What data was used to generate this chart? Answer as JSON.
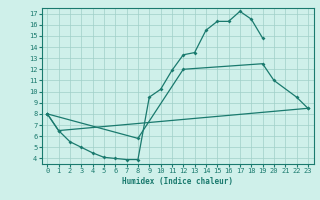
{
  "xlabel": "Humidex (Indice chaleur)",
  "background_color": "#cff0ea",
  "grid_color": "#a0cfc8",
  "line_color": "#1a7a6e",
  "xlim": [
    -0.5,
    23.5
  ],
  "ylim": [
    3.5,
    17.5
  ],
  "xticks": [
    0,
    1,
    2,
    3,
    4,
    5,
    6,
    7,
    8,
    9,
    10,
    11,
    12,
    13,
    14,
    15,
    16,
    17,
    18,
    19,
    20,
    21,
    22,
    23
  ],
  "yticks": [
    4,
    5,
    6,
    7,
    8,
    9,
    10,
    11,
    12,
    13,
    14,
    15,
    16,
    17
  ],
  "line1_x": [
    0,
    1,
    2,
    3,
    4,
    5,
    6,
    7,
    8,
    9,
    10,
    11,
    12,
    13,
    14,
    15,
    16,
    17,
    18,
    19
  ],
  "line1_y": [
    8.0,
    6.5,
    5.5,
    5.0,
    4.5,
    4.1,
    4.0,
    3.9,
    3.9,
    9.5,
    10.2,
    11.9,
    13.3,
    13.5,
    15.5,
    16.3,
    16.3,
    17.2,
    16.5,
    14.8
  ],
  "line2_x": [
    0,
    8,
    12,
    19,
    20,
    22,
    23
  ],
  "line2_y": [
    8.0,
    5.8,
    12.0,
    12.5,
    11.0,
    9.5,
    8.5
  ],
  "line3_x": [
    0,
    1,
    23
  ],
  "line3_y": [
    8.0,
    6.5,
    8.5
  ]
}
